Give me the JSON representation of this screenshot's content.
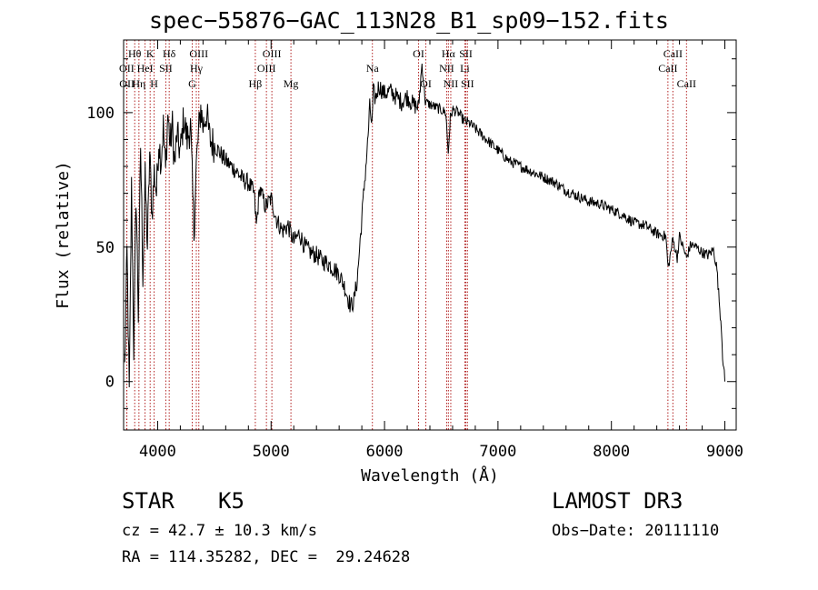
{
  "title": "spec−55876−GAC_113N28_B1_sp09−152.fits",
  "info": {
    "object_class": "STAR",
    "subclass": "K5",
    "release": "LAMOST DR3",
    "redshift_line": "cz = 42.7 ± 10.3 km/s",
    "obs_date_line": "Obs−Date: 20111110",
    "radec_line": "RA = 114.35282, DEC =  29.24628"
  },
  "chart_data": {
    "type": "line",
    "title": "spec−55876−GAC_113N28_B1_sp09−152.fits",
    "xlabel": "Wavelength (Å)",
    "ylabel": "Flux (relative)",
    "xlim": [
      3700,
      9100
    ],
    "ylim": [
      -18,
      127
    ],
    "x_ticks": [
      4000,
      5000,
      6000,
      7000,
      8000,
      9000
    ],
    "x_tick_labels": [
      "4000",
      "5000",
      "6000",
      "7000",
      "8000",
      "9000"
    ],
    "y_ticks": [
      0,
      50,
      100
    ],
    "y_tick_labels": [
      "0",
      "50",
      "100"
    ],
    "series": [
      {
        "name": "flux",
        "x": [
          3710,
          3730,
          3750,
          3770,
          3790,
          3810,
          3830,
          3850,
          3870,
          3890,
          3910,
          3930,
          3950,
          3970,
          3990,
          4010,
          4030,
          4050,
          4070,
          4090,
          4110,
          4130,
          4150,
          4170,
          4200,
          4230,
          4260,
          4290,
          4320,
          4340,
          4360,
          4380,
          4400,
          4430,
          4460,
          4500,
          4550,
          4600,
          4650,
          4700,
          4750,
          4800,
          4850,
          4870,
          4900,
          4950,
          5000,
          5050,
          5100,
          5150,
          5200,
          5250,
          5300,
          5350,
          5400,
          5450,
          5500,
          5550,
          5600,
          5650,
          5700,
          5730,
          5760,
          5790,
          5820,
          5850,
          5870,
          5890,
          5900,
          5920,
          5950,
          6000,
          6050,
          6100,
          6150,
          6200,
          6250,
          6300,
          6330,
          6360,
          6400,
          6450,
          6500,
          6540,
          6562,
          6580,
          6600,
          6650,
          6700,
          6750,
          6800,
          6850,
          6900,
          6950,
          7000,
          7100,
          7200,
          7300,
          7400,
          7500,
          7600,
          7700,
          7800,
          7900,
          8000,
          8100,
          8200,
          8300,
          8400,
          8480,
          8500,
          8542,
          8580,
          8600,
          8662,
          8700,
          8750,
          8800,
          8850,
          8900,
          8930,
          8950,
          8970,
          8980,
          8990,
          9000
        ],
        "values": [
          5,
          48,
          -5,
          72,
          12,
          70,
          25,
          88,
          40,
          75,
          50,
          85,
          62,
          78,
          70,
          90,
          82,
          95,
          78,
          100,
          88,
          95,
          80,
          92,
          85,
          98,
          90,
          95,
          55,
          80,
          92,
          102,
          95,
          100,
          90,
          88,
          85,
          82,
          80,
          78,
          75,
          74,
          70,
          58,
          72,
          65,
          68,
          60,
          56,
          58,
          52,
          55,
          50,
          48,
          47,
          45,
          44,
          42,
          40,
          35,
          28,
          30,
          38,
          55,
          72,
          88,
          102,
          95,
          108,
          105,
          110,
          107,
          108,
          106,
          104,
          106,
          103,
          102,
          118,
          104,
          103,
          102,
          101,
          100,
          85,
          98,
          101,
          100,
          97,
          96,
          94,
          92,
          90,
          88,
          86,
          82,
          80,
          78,
          76,
          74,
          71,
          69,
          67,
          66,
          64,
          62,
          59,
          58,
          55,
          54,
          42,
          53,
          46,
          54,
          46,
          51,
          50,
          48,
          47,
          49,
          42,
          30,
          20,
          10,
          5,
          0
        ]
      }
    ],
    "line_markers": [
      {
        "label": "Hθ",
        "wavelength": 3798,
        "row": 1
      },
      {
        "label": "OII",
        "wavelength": 3727,
        "row": 2
      },
      {
        "label": "OII",
        "wavelength": 3729,
        "row": 3
      },
      {
        "label": "K",
        "wavelength": 3934,
        "row": 1
      },
      {
        "label": "HeI",
        "wavelength": 3889,
        "row": 2
      },
      {
        "label": "Hη",
        "wavelength": 3835,
        "row": 3
      },
      {
        "label": "Hδ",
        "wavelength": 4102,
        "row": 1
      },
      {
        "label": "SII",
        "wavelength": 4072,
        "row": 2
      },
      {
        "label": "H",
        "wavelength": 3969,
        "row": 3
      },
      {
        "label": "OIII",
        "wavelength": 4363,
        "row": 1
      },
      {
        "label": "Hγ",
        "wavelength": 4341,
        "row": 2
      },
      {
        "label": "G",
        "wavelength": 4305,
        "row": 3
      },
      {
        "label": "OIII",
        "wavelength": 5007,
        "row": 1
      },
      {
        "label": "OIII",
        "wavelength": 4959,
        "row": 2
      },
      {
        "label": "Hβ",
        "wavelength": 4861,
        "row": 3
      },
      {
        "label": "Mg",
        "wavelength": 5175,
        "row": 3
      },
      {
        "label": "Na",
        "wavelength": 5893,
        "row": 2
      },
      {
        "label": "OI",
        "wavelength": 6300,
        "row": 1
      },
      {
        "label": "OI",
        "wavelength": 6364,
        "row": 3
      },
      {
        "label": "Hα",
        "wavelength": 6563,
        "row": 1
      },
      {
        "label": "NII",
        "wavelength": 6548,
        "row": 2
      },
      {
        "label": "NII",
        "wavelength": 6584,
        "row": 3
      },
      {
        "label": "SII",
        "wavelength": 6717,
        "row": 1
      },
      {
        "label": "Li",
        "wavelength": 6708,
        "row": 2
      },
      {
        "label": "SII",
        "wavelength": 6731,
        "row": 3
      },
      {
        "label": "CaII",
        "wavelength": 8542,
        "row": 1
      },
      {
        "label": "CaII",
        "wavelength": 8498,
        "row": 2
      },
      {
        "label": "CaII",
        "wavelength": 8662,
        "row": 3
      }
    ]
  }
}
